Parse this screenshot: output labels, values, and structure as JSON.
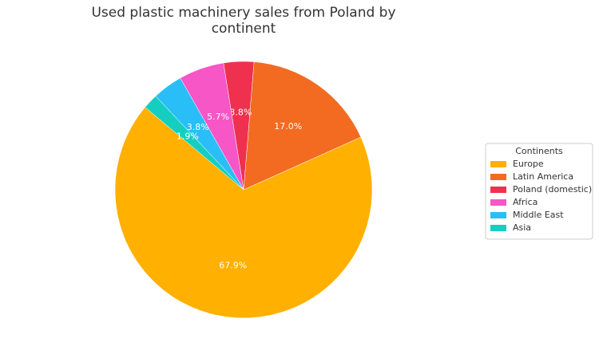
{
  "chart_data": {
    "type": "pie",
    "title": "Used plastic machinery sales from Poland by continent",
    "categories": [
      "Europe",
      "Latin America",
      "Poland (domestic)",
      "Africa",
      "Middle East",
      "Asia"
    ],
    "values": [
      67.9,
      17.0,
      3.8,
      5.7,
      3.8,
      1.9
    ],
    "value_labels": [
      "67.9%",
      "17.0%",
      "3.8%",
      "5.7%",
      "3.8%",
      "1.9%"
    ],
    "colors": [
      "#FFB000",
      "#F26B21",
      "#F0304F",
      "#F656C6",
      "#2ABEF8",
      "#14CFC0"
    ],
    "legend_title": "Continents",
    "legend_position": "right"
  }
}
